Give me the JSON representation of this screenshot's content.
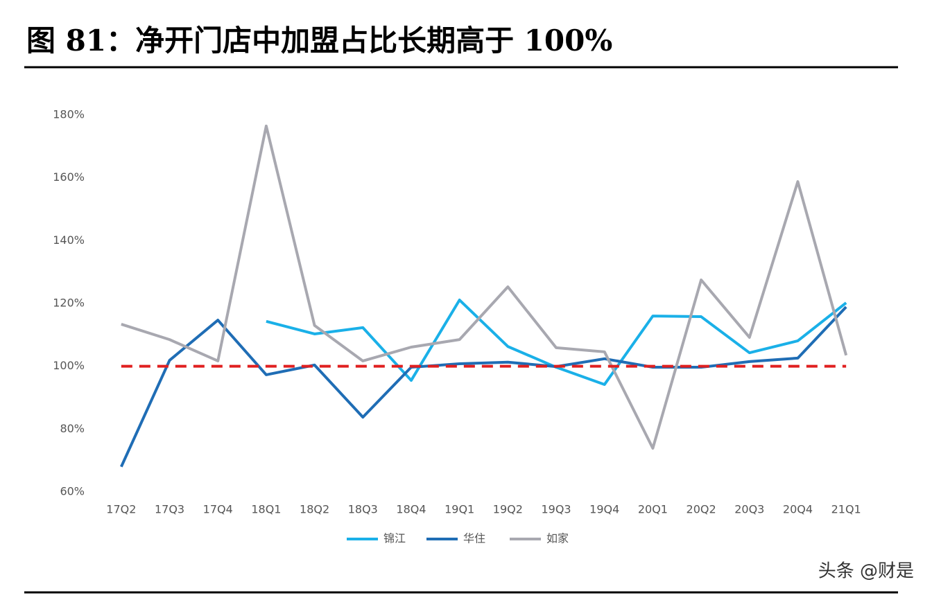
{
  "chart_data": {
    "type": "line",
    "title": "图 81：净开门店中加盟占比长期高于 100%",
    "categories": [
      "17Q2",
      "17Q3",
      "17Q4",
      "18Q1",
      "18Q2",
      "18Q3",
      "18Q4",
      "19Q1",
      "19Q2",
      "19Q3",
      "19Q4",
      "20Q1",
      "20Q2",
      "20Q3",
      "20Q4",
      "21Q1"
    ],
    "series": [
      {
        "name": "锦江",
        "color": "#1ab0e8",
        "values": [
          null,
          null,
          null,
          114.3,
          110.3,
          112.3,
          95.5,
          121.1,
          106.3,
          99.7,
          94.2,
          116,
          115.8,
          104.3,
          108.1,
          120.2
        ]
      },
      {
        "name": "华住",
        "color": "#1f6db5",
        "values": [
          68,
          101.9,
          114.7,
          97.3,
          100.4,
          83.8,
          99.7,
          100.8,
          101.3,
          99.9,
          102.4,
          99.7,
          99.7,
          101.5,
          102.6,
          118.9
        ]
      },
      {
        "name": "如家",
        "color": "#a8a8b0",
        "values": [
          113.4,
          108.5,
          101.7,
          176.5,
          113,
          101.7,
          106.1,
          108.5,
          125.3,
          105.9,
          104.6,
          73.9,
          127.5,
          109.2,
          158.8,
          103.5
        ]
      }
    ],
    "reference_line": {
      "value": 100,
      "color": "#e02020"
    },
    "ylim": [
      60,
      180
    ],
    "yticks": [
      {
        "value": 60,
        "label": "60%"
      },
      {
        "value": 80,
        "label": "80%"
      },
      {
        "value": 100,
        "label": "100%"
      },
      {
        "value": 120,
        "label": "120%"
      },
      {
        "value": 140,
        "label": "140%"
      },
      {
        "value": 160,
        "label": "160%"
      },
      {
        "value": 180,
        "label": "180%"
      }
    ],
    "grid": false,
    "legend": "bottom",
    "watermark": "头条 @财是"
  }
}
